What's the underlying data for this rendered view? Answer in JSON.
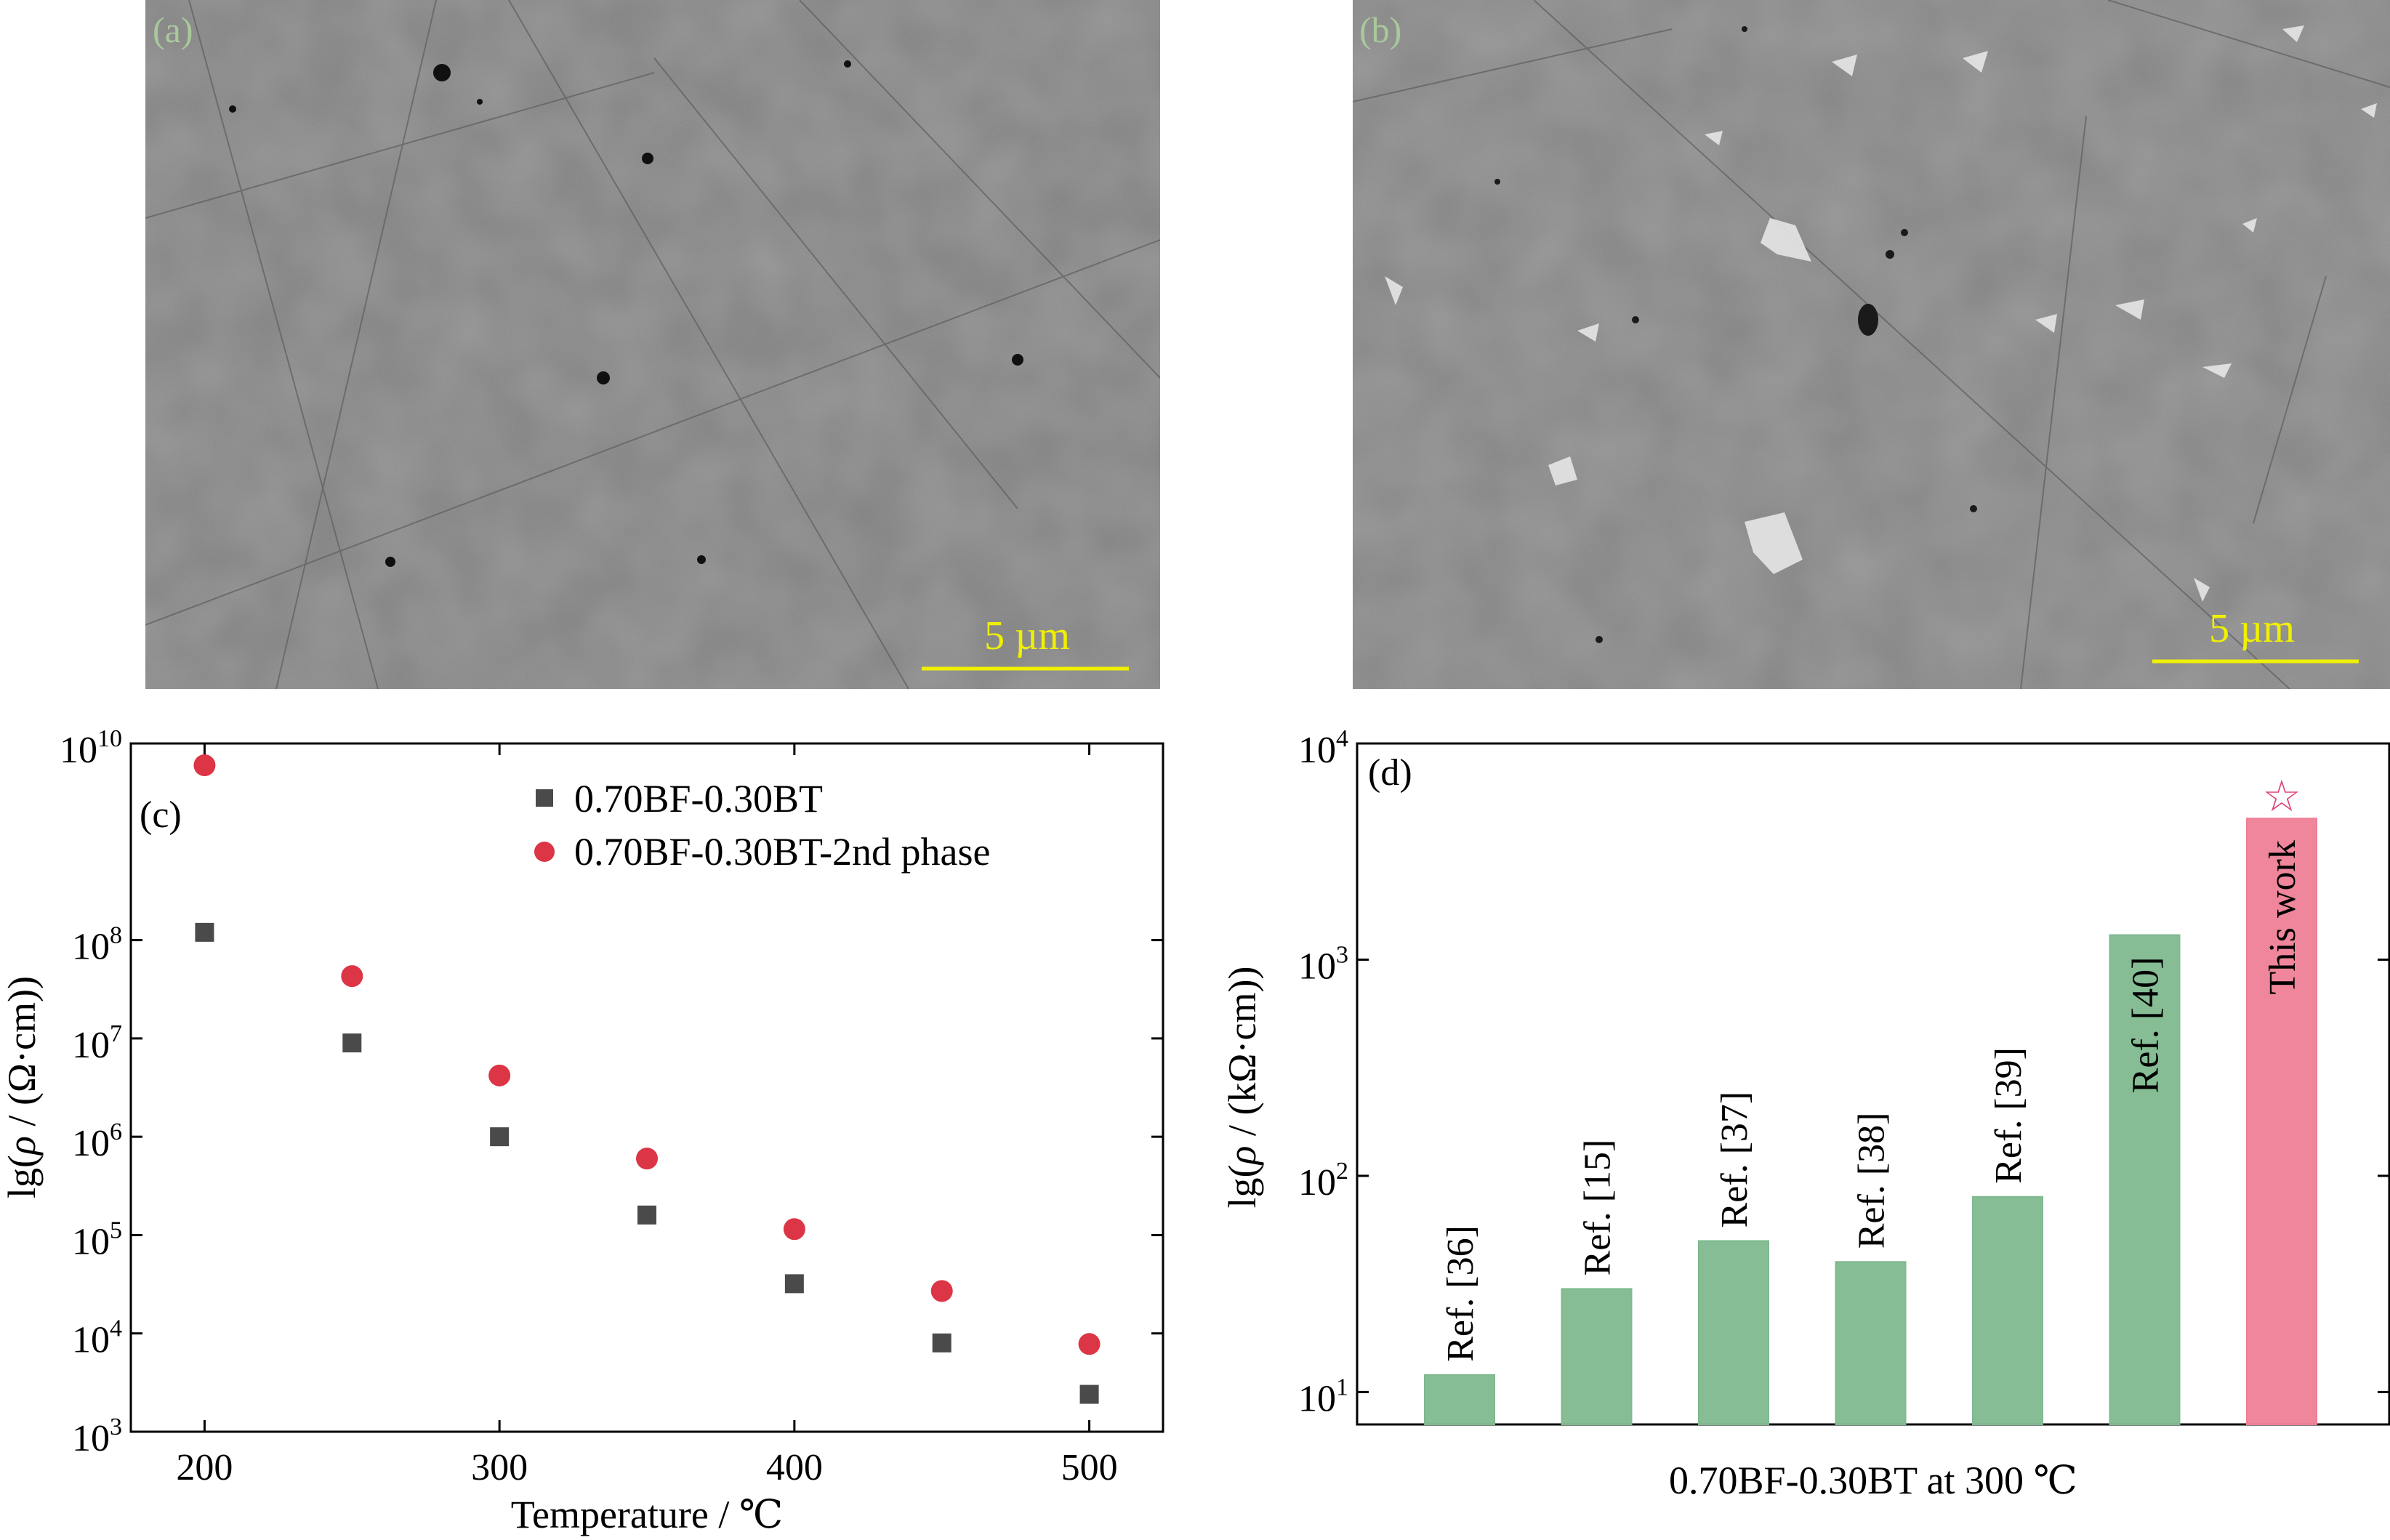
{
  "panels": {
    "a": {
      "letter": "(a)",
      "scale_bar": "5 µm"
    },
    "b": {
      "letter": "(b)",
      "scale_bar": "5 µm"
    }
  },
  "chart_data": [
    {
      "id": "c",
      "type": "scatter",
      "panel_letter": "(c)",
      "xlabel": "Temperature / ℃",
      "ylabel_parts": {
        "pre": "lg(",
        "rho": "ρ",
        "post": " / (Ω·cm))"
      },
      "xlim": [
        175,
        525
      ],
      "ylim_log10": [
        3,
        10
      ],
      "log_y": true,
      "x_ticks": [
        200,
        300,
        400,
        500
      ],
      "y_tick_exponents": [
        3,
        4,
        5,
        6,
        7,
        8,
        10
      ],
      "y_tick_base": "10",
      "legend_position": "top-right",
      "series": [
        {
          "name": "0.70BF-0.30BT",
          "marker": "square",
          "color": "#4a4a4a",
          "x": [
            200,
            250,
            300,
            350,
            400,
            450,
            500
          ],
          "y": [
            120000000,
            9000000,
            1000000,
            160000,
            32000,
            8000,
            2400
          ]
        },
        {
          "name": "0.70BF-0.30BT-2nd phase",
          "marker": "circle",
          "color": "#dc3545",
          "x": [
            200,
            250,
            300,
            350,
            400,
            450,
            500
          ],
          "y": [
            6000000000,
            43000000,
            4200000,
            600000,
            115000,
            27000,
            7800
          ]
        }
      ]
    },
    {
      "id": "d",
      "type": "bar",
      "panel_letter": "(d)",
      "xlabel": "0.70BF-0.30BT at 300 ℃",
      "ylabel_parts": {
        "pre": "lg(",
        "rho": "ρ",
        "post": " / (kΩ·cm))"
      },
      "log_y": true,
      "ylim_log10": [
        0.85,
        4
      ],
      "y_tick_exponents": [
        1,
        2,
        3,
        4
      ],
      "y_tick_base": "10",
      "categories": [
        "Ref. [36]",
        "Ref. [15]",
        "Ref. [37]",
        "Ref. [38]",
        "Ref. [39]",
        "Ref. [40]",
        "This work"
      ],
      "values": [
        12,
        30,
        50,
        40,
        80,
        1300,
        4500
      ],
      "colors": [
        "#7fb98f",
        "#7fb98f",
        "#7fb98f",
        "#7fb98f",
        "#7fb98f",
        "#7fb98f",
        "#ee7f96"
      ],
      "star_color": "#e0457a",
      "highlight_marker": "☆"
    }
  ]
}
